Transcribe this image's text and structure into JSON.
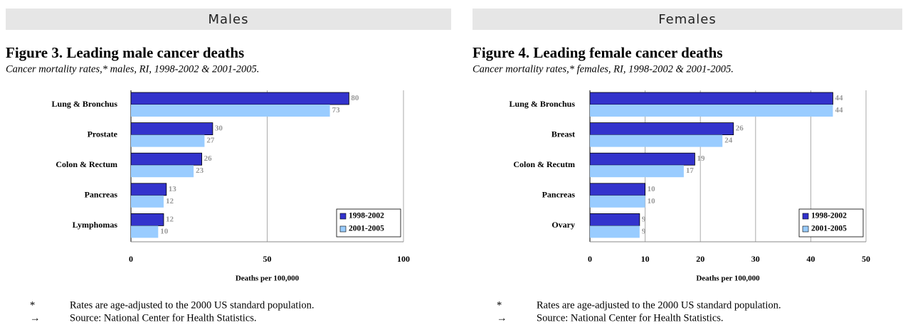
{
  "sections": [
    {
      "header": "Males",
      "footnotes": [
        {
          "symbol": "*",
          "text": "Rates are age-adjusted to the 2000 US standard population."
        },
        {
          "symbol": "→",
          "text": "Source: National Center for Health Statistics."
        }
      ]
    },
    {
      "header": "Females",
      "footnotes": [
        {
          "symbol": "*",
          "text": "Rates are age-adjusted to the 2000 US standard population."
        },
        {
          "symbol": "→",
          "text": "Source: National Center for Health Statistics."
        }
      ]
    }
  ],
  "chart_data": [
    {
      "type": "bar",
      "orientation": "horizontal",
      "title": "Figure 3. Leading male cancer deaths",
      "subtitle": "Cancer mortality rates,* males, RI, 1998-2002 & 2001-2005.",
      "x_label": "Deaths per 100,000",
      "categories": [
        "Lung & Bronchus",
        "Prostate",
        "Colon & Rectum",
        "Pancreas",
        "Lymphomas"
      ],
      "series": [
        {
          "name": "1998-2002",
          "color": "#3333cc",
          "values": [
            80,
            30,
            26,
            13,
            12
          ]
        },
        {
          "name": "2001-2005",
          "color": "#99ccff",
          "values": [
            73,
            27,
            23,
            12,
            10
          ]
        }
      ],
      "xlim": [
        0,
        100
      ],
      "xticks": [
        0,
        50,
        100
      ],
      "grid": true,
      "legend": "lower right"
    },
    {
      "type": "bar",
      "orientation": "horizontal",
      "title": "Figure 4. Leading female cancer deaths",
      "subtitle": "Cancer mortality rates,* females, RI, 1998-2002 & 2001-2005.",
      "x_label": "Deaths per 100,000",
      "categories": [
        "Lung & Bronchus",
        "Breast",
        "Colon & Recutm",
        "Pancreas",
        "Ovary"
      ],
      "series": [
        {
          "name": "1998-2002",
          "color": "#3333cc",
          "values": [
            44,
            26,
            19,
            10,
            9
          ]
        },
        {
          "name": "2001-2005",
          "color": "#99ccff",
          "values": [
            44,
            24,
            17,
            10,
            9
          ]
        }
      ],
      "xlim": [
        0,
        50
      ],
      "xticks": [
        0,
        10,
        20,
        30,
        40,
        50
      ],
      "grid": true,
      "legend": "lower right"
    }
  ]
}
